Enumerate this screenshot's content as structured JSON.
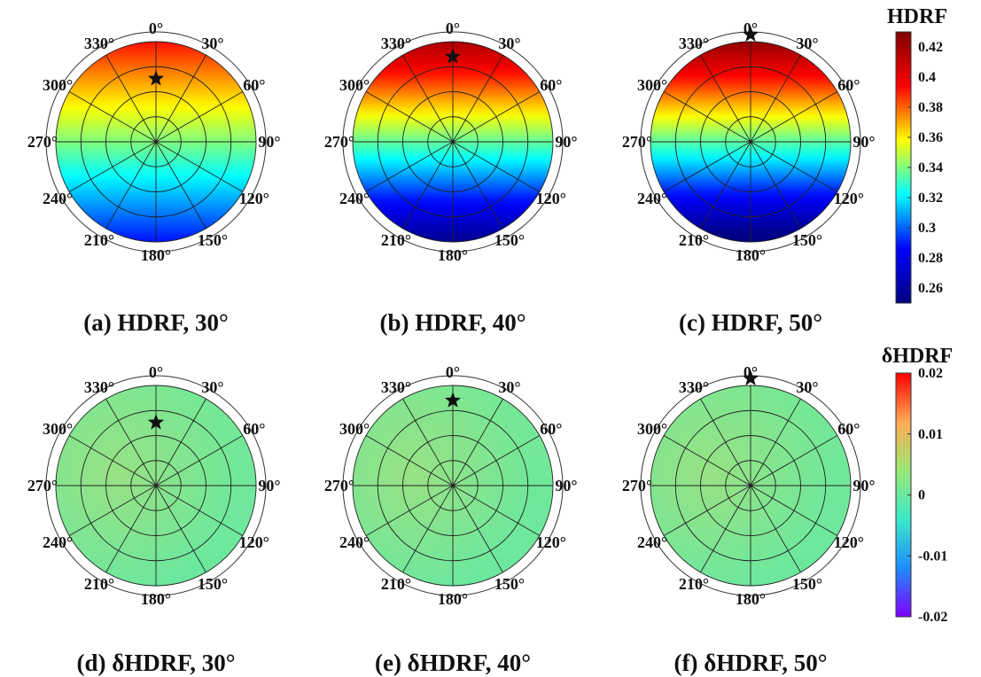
{
  "chart_data": [
    {
      "type": "heatmap",
      "subtype": "polar",
      "caption": "(a) HDRF, 30°",
      "variable": "HDRF",
      "sza_deg": 30,
      "center_value": 0.34,
      "amplitude": 0.052,
      "sun": {
        "azimuth_deg": 0,
        "zenith_norm": 0.63
      },
      "angular_ticks": [
        "0°",
        "30°",
        "60°",
        "90°",
        "120°",
        "150°",
        "180°",
        "210°",
        "240°",
        "270°",
        "300°",
        "330°"
      ]
    },
    {
      "type": "heatmap",
      "subtype": "polar",
      "caption": "(b) HDRF, 40°",
      "variable": "HDRF",
      "sza_deg": 40,
      "center_value": 0.336,
      "amplitude": 0.082,
      "sun": {
        "azimuth_deg": 0,
        "zenith_norm": 0.85
      },
      "angular_ticks": [
        "0°",
        "30°",
        "60°",
        "90°",
        "120°",
        "150°",
        "180°",
        "210°",
        "240°",
        "270°",
        "300°",
        "330°"
      ]
    },
    {
      "type": "heatmap",
      "subtype": "polar",
      "caption": "(c) HDRF, 50°",
      "variable": "HDRF",
      "sza_deg": 50,
      "center_value": 0.335,
      "amplitude": 0.09,
      "sun": {
        "azimuth_deg": 0,
        "zenith_norm": 1.07
      },
      "angular_ticks": [
        "0°",
        "30°",
        "60°",
        "90°",
        "120°",
        "150°",
        "180°",
        "210°",
        "240°",
        "270°",
        "300°",
        "330°"
      ]
    },
    {
      "type": "heatmap",
      "subtype": "polar",
      "caption": "(d) δHDRF, 30°",
      "variable": "δHDRF",
      "sza_deg": 30,
      "center_value": 0.0005,
      "amplitude": 0.0015,
      "sun": {
        "azimuth_deg": 0,
        "zenith_norm": 0.63
      },
      "angular_ticks": [
        "0°",
        "30°",
        "60°",
        "90°",
        "120°",
        "150°",
        "180°",
        "210°",
        "240°",
        "270°",
        "300°",
        "330°"
      ]
    },
    {
      "type": "heatmap",
      "subtype": "polar",
      "caption": "(e) δHDRF, 40°",
      "variable": "δHDRF",
      "sza_deg": 40,
      "center_value": 0.0005,
      "amplitude": 0.0015,
      "sun": {
        "azimuth_deg": 0,
        "zenith_norm": 0.85
      },
      "angular_ticks": [
        "0°",
        "30°",
        "60°",
        "90°",
        "120°",
        "150°",
        "180°",
        "210°",
        "240°",
        "270°",
        "300°",
        "330°"
      ]
    },
    {
      "type": "heatmap",
      "subtype": "polar",
      "caption": "(f) δHDRF, 50°",
      "variable": "δHDRF",
      "sza_deg": 50,
      "center_value": 0.0005,
      "amplitude": 0.0015,
      "sun": {
        "azimuth_deg": 0,
        "zenith_norm": 1.07
      },
      "angular_ticks": [
        "0°",
        "30°",
        "60°",
        "90°",
        "120°",
        "150°",
        "180°",
        "210°",
        "240°",
        "270°",
        "300°",
        "330°"
      ]
    }
  ],
  "colorbars": [
    {
      "title": "HDRF",
      "range": [
        0.25,
        0.43
      ],
      "ticks": [
        0.42,
        0.4,
        0.38,
        0.36,
        0.34,
        0.32,
        0.3,
        0.28,
        0.26
      ],
      "tick_labels": [
        "0.42",
        "0.4",
        "0.38",
        "0.36",
        "0.34",
        "0.32",
        "0.3",
        "0.28",
        "0.26"
      ],
      "colormap": "jet",
      "colors": [
        "#000080",
        "#0000ff",
        "#00ffff",
        "#ffff00",
        "#ff0000",
        "#800000"
      ]
    },
    {
      "title": "δHDRF",
      "range": [
        -0.02,
        0.02
      ],
      "ticks": [
        0.02,
        0.01,
        0,
        -0.01,
        -0.02
      ],
      "tick_labels": [
        "0.02",
        "0.01",
        "0",
        "-0.01",
        "-0.02"
      ],
      "colormap": "rainbow",
      "colors": [
        "#8000ff",
        "#1e8cff",
        "#3be8c8",
        "#9ae876",
        "#ffaa55",
        "#ff0000"
      ]
    }
  ]
}
